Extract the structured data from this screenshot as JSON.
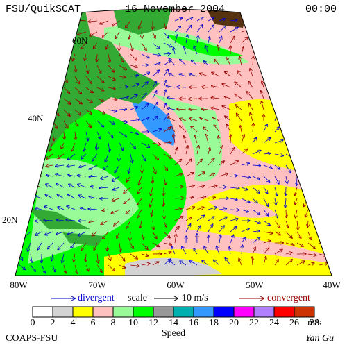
{
  "header": {
    "source": "FSU/QuikSCAT",
    "date": "16 November 2004",
    "time": "00:00"
  },
  "map": {
    "latitude_labels": [
      "60N",
      "40N",
      "20N"
    ],
    "longitude_labels": [
      "80W",
      "70W",
      "60W",
      "50W",
      "40W"
    ]
  },
  "legend": {
    "divergent": "divergent",
    "scale": "scale",
    "scale_value": "10 m/s",
    "convergent": "convergent"
  },
  "colorbar": {
    "title": "Speed",
    "unit": "m/s",
    "ticks": [
      0,
      2,
      4,
      6,
      8,
      10,
      12,
      14,
      16,
      18,
      20,
      22,
      24,
      26,
      28
    ],
    "colors": [
      "#ffffff",
      "#d3d3d3",
      "#ffff00",
      "#ffc0c0",
      "#98fb98",
      "#00ff00",
      "#999999",
      "#00b0b0",
      "#3399ff",
      "#0000ff",
      "#ff00ff",
      "#b080ff",
      "#ff0000",
      "#cc3300"
    ]
  },
  "footer": {
    "credit": "COAPS-FSU",
    "author": "Yan Gu"
  }
}
